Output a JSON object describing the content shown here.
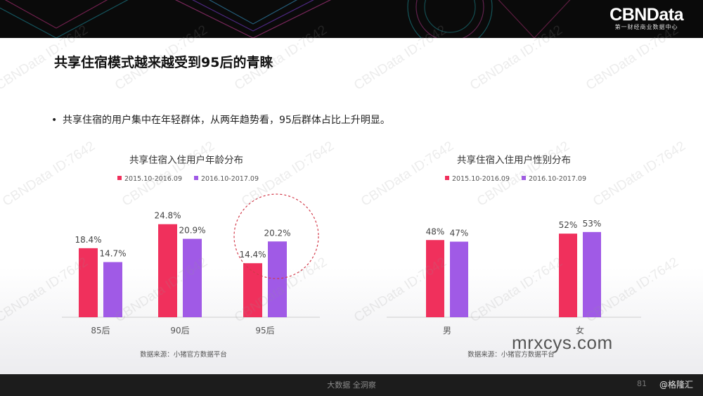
{
  "brand": {
    "name": "CBNData",
    "subtitle": "第一财经商业数据中心"
  },
  "page_title": "共享住宿模式越来越受到95后的青睐",
  "bullet_text": "共享住宿的用户集中在年轻群体，从两年趋势看，95后群体占比上升明显。",
  "watermark_text": "CBNData ID:7642",
  "colors": {
    "series1": "#f0305c",
    "series2": "#a05ae6",
    "highlight_circle": "#d23a4a"
  },
  "chart_data": [
    {
      "type": "bar",
      "title": "共享住宿入住用户年龄分布",
      "categories": [
        "85后",
        "90后",
        "95后"
      ],
      "series": [
        {
          "name": "2015.10-2016.09",
          "values": [
            18.4,
            24.8,
            14.4
          ],
          "labels": [
            "18.4%",
            "24.8%",
            "14.4%"
          ]
        },
        {
          "name": "2016.10-2017.09",
          "values": [
            14.7,
            20.9,
            20.2
          ],
          "labels": [
            "14.7%",
            "20.9%",
            "20.2%"
          ]
        }
      ],
      "ylim": [
        0,
        30
      ],
      "highlight_category": "95后",
      "source": "数据来源：小猪官方数据平台"
    },
    {
      "type": "bar",
      "title": "共享住宿入住用户性别分布",
      "categories": [
        "男",
        "女"
      ],
      "series": [
        {
          "name": "2015.10-2016.09",
          "values": [
            48,
            52
          ],
          "labels": [
            "48%",
            "52%"
          ]
        },
        {
          "name": "2016.10-2017.09",
          "values": [
            47,
            53
          ],
          "labels": [
            "47%",
            "53%"
          ]
        }
      ],
      "ylim": [
        0,
        70
      ],
      "source": "数据来源：小猪官方数据平台"
    }
  ],
  "footer": {
    "center": "大数据 全洞察",
    "page_number": "81",
    "handle": "@格隆汇"
  },
  "site_watermark": "mrxcys.com"
}
